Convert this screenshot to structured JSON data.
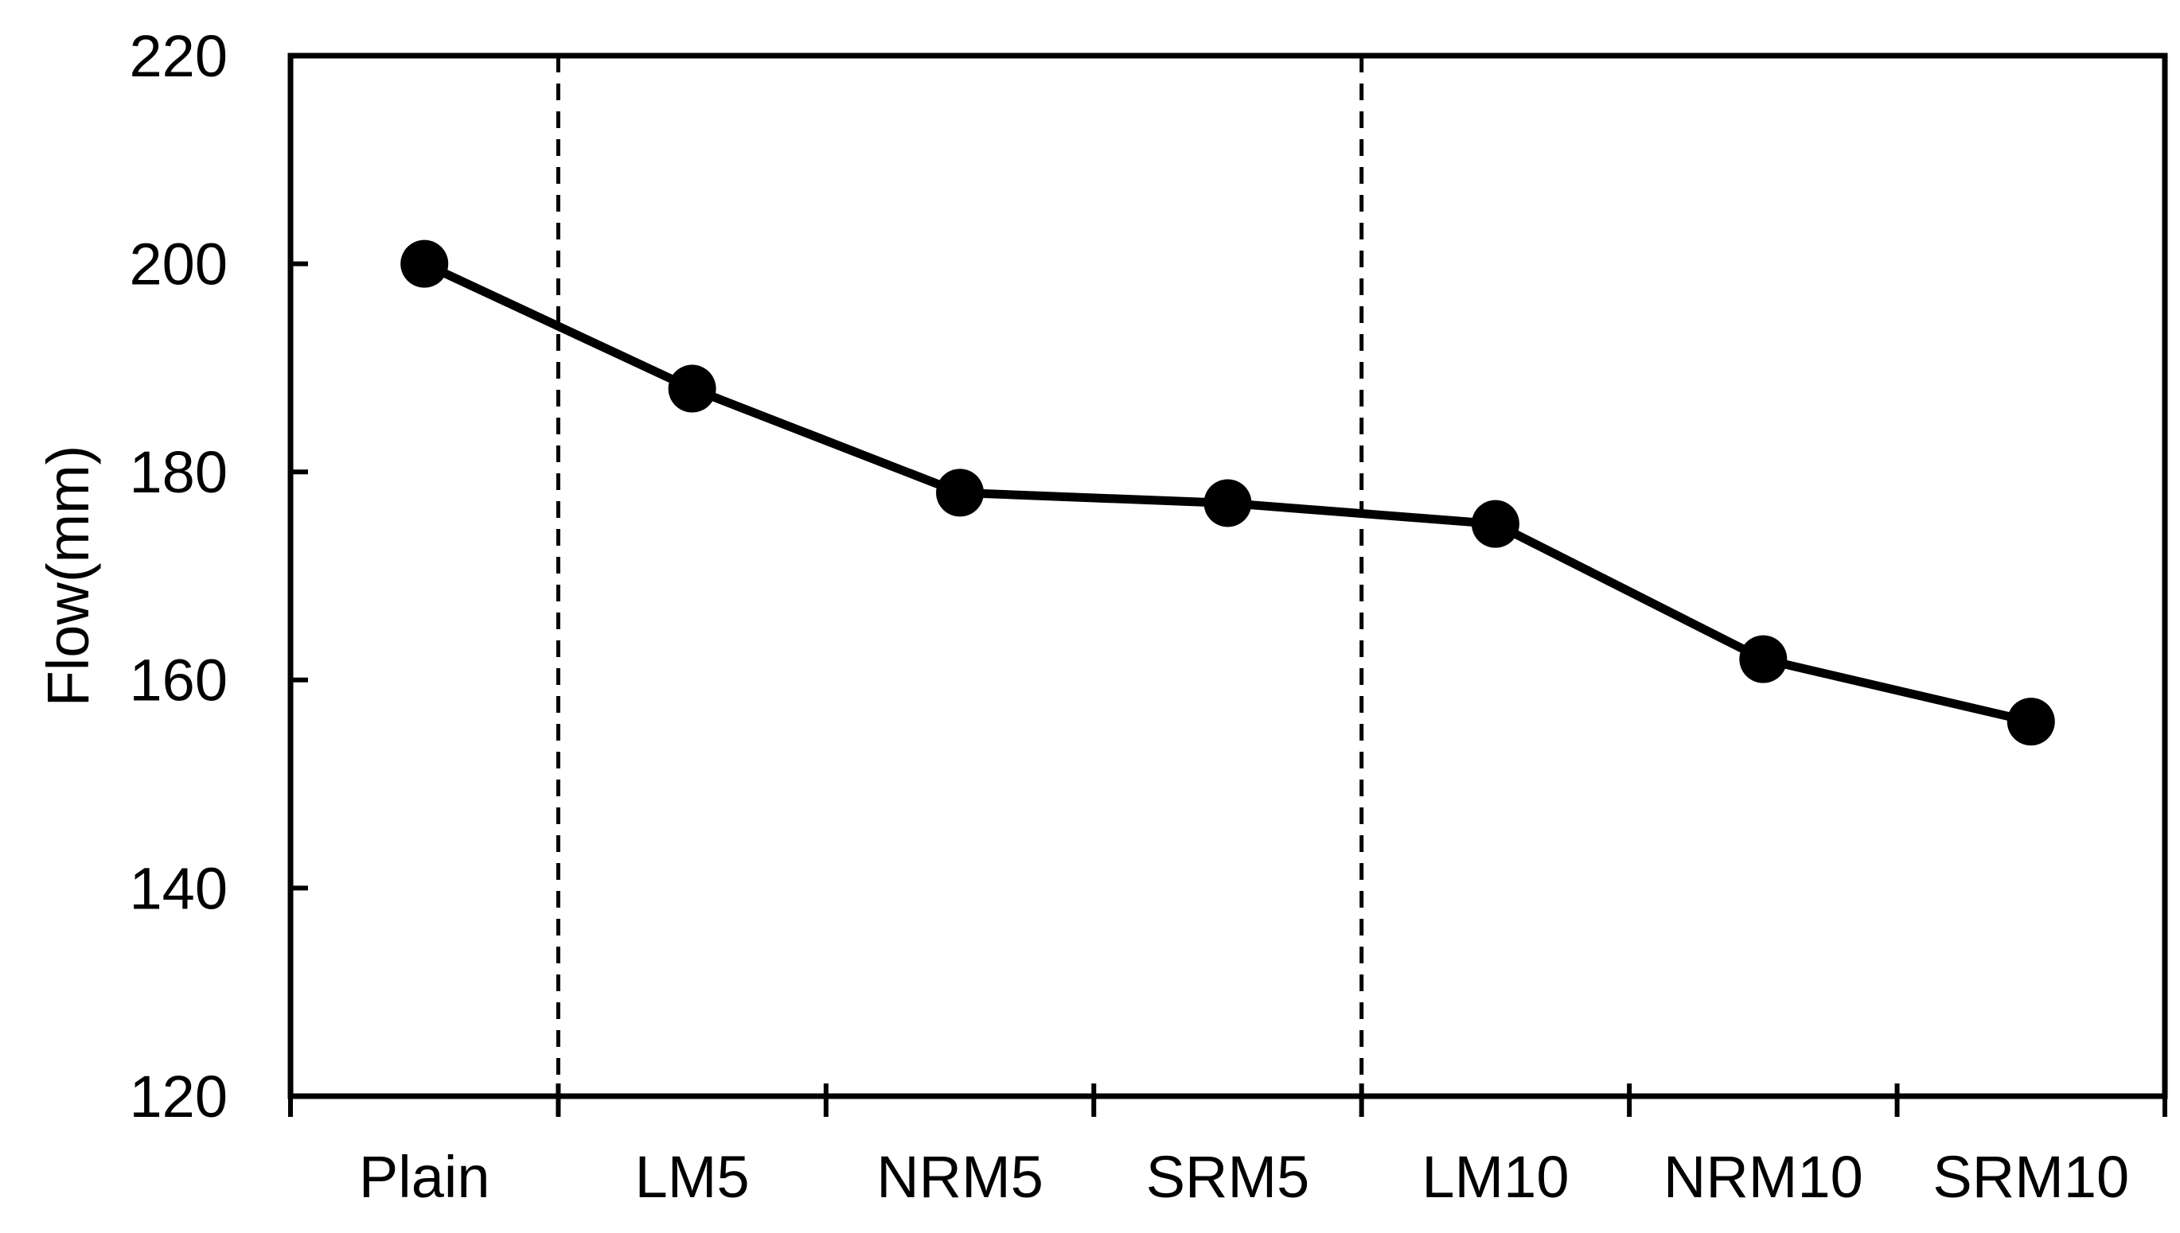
{
  "page": {
    "background": "#ffffff"
  },
  "chart_data": {
    "type": "line",
    "categories": [
      "Plain",
      "LM5",
      "NRM5",
      "SRM5",
      "LM10",
      "NRM10",
      "SRM10"
    ],
    "series": [
      {
        "name": "Flow",
        "values": [
          200,
          188,
          178,
          177,
          175,
          162,
          156
        ]
      }
    ],
    "title": "",
    "xlabel": "",
    "ylabel": "Flow(mm)",
    "ylim": [
      120,
      220
    ],
    "yticks": [
      120,
      140,
      160,
      180,
      200,
      220
    ],
    "grid": false,
    "legend": false,
    "marker": "circle",
    "line_color": "#000000",
    "marker_color": "#000000",
    "axis_color": "#000000",
    "text_color": "#000000",
    "separator_lines": {
      "style": "dashed",
      "color": "#000000",
      "at_category_boundaries": [
        1,
        4
      ]
    }
  }
}
